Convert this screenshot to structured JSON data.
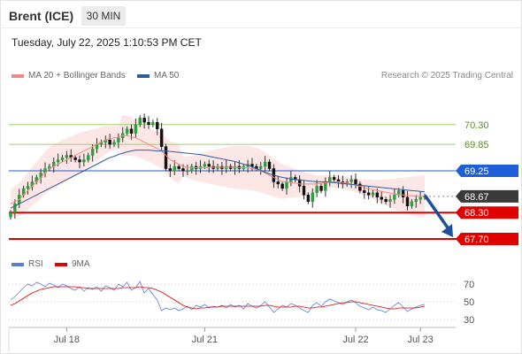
{
  "header": {
    "title": "Brent (ICE)",
    "timeframe": "30 MIN"
  },
  "datetime": "Tuesday, July 22, 2025 1:10:53 PM CET",
  "legend": {
    "main": [
      {
        "label": "MA 20 + Bollinger Bands",
        "color": "#f08a86"
      },
      {
        "label": "MA 50",
        "color": "#2e5d9e"
      }
    ],
    "rsi": [
      {
        "label": "RSI",
        "color": "#5b7fd6"
      },
      {
        "label": "9MA",
        "color": "#e00000"
      }
    ]
  },
  "credit": "Research © 2025 Trading Central",
  "chart_data": [
    {
      "type": "candlestick",
      "instrument": "Brent (ICE)",
      "timeframe": "30 MIN",
      "y_range": [
        67.5,
        71.2
      ],
      "levels": [
        {
          "value": 70.3,
          "label": "70.30",
          "kind": "resistance",
          "color": "#9fcf6b"
        },
        {
          "value": 69.85,
          "label": "69.85",
          "kind": "resistance",
          "color": "#9fcf6b"
        },
        {
          "value": 69.25,
          "label": "69.25",
          "kind": "pivot",
          "color": "#1d5fd6"
        },
        {
          "value": 68.67,
          "label": "68.67",
          "kind": "last_price",
          "color": "#3a3a3a"
        },
        {
          "value": 68.3,
          "label": "68.30",
          "kind": "support",
          "color": "#e00000"
        },
        {
          "value": 67.7,
          "label": "67.70",
          "kind": "support",
          "color": "#e00000"
        }
      ],
      "x_ticks": [
        "Jul 18",
        "Jul 21",
        "Jul 22",
        "Jul 23"
      ],
      "x_tick_index": [
        13,
        45,
        80,
        95
      ],
      "candles_count": 97,
      "closes": [
        68.3,
        68.5,
        68.7,
        68.85,
        68.9,
        69.0,
        69.1,
        69.2,
        69.3,
        69.35,
        69.45,
        69.5,
        69.55,
        69.6,
        69.55,
        69.5,
        69.45,
        69.5,
        69.6,
        69.75,
        69.85,
        69.9,
        69.95,
        69.85,
        69.9,
        70.0,
        70.1,
        70.2,
        70.1,
        70.3,
        70.45,
        70.35,
        70.3,
        70.35,
        70.2,
        69.8,
        69.3,
        69.25,
        69.35,
        69.3,
        69.25,
        69.25,
        69.35,
        69.3,
        69.35,
        69.4,
        69.35,
        69.3,
        69.35,
        69.3,
        69.35,
        69.3,
        69.35,
        69.3,
        69.35,
        69.4,
        69.35,
        69.3,
        69.35,
        69.45,
        69.3,
        69.0,
        68.95,
        68.85,
        69.0,
        69.1,
        69.05,
        68.9,
        68.7,
        68.55,
        68.75,
        68.9,
        68.8,
        69.0,
        69.1,
        69.05,
        69.0,
        68.95,
        69.0,
        69.05,
        68.95,
        68.8,
        68.75,
        68.7,
        68.75,
        68.65,
        68.6,
        68.55,
        68.6,
        68.7,
        68.8,
        68.65,
        68.45,
        68.55,
        68.6,
        68.65,
        68.67
      ],
      "ma20": [
        68.5,
        68.55,
        68.6,
        68.7,
        68.8,
        68.9,
        69.0,
        69.1,
        69.2,
        69.3,
        69.35,
        69.4,
        69.45,
        69.5,
        69.55,
        69.6,
        69.65,
        69.7,
        69.75,
        69.8,
        69.85,
        69.9,
        69.95,
        69.98,
        70.0,
        70.02,
        70.05,
        70.05,
        70.02,
        70.0,
        69.95,
        69.9,
        69.85,
        69.8,
        69.75,
        69.7,
        69.6,
        69.5,
        69.45,
        69.4,
        69.35,
        69.33,
        69.32,
        69.32,
        69.32,
        69.32,
        69.33,
        69.33,
        69.33,
        69.33,
        69.33,
        69.33,
        69.33,
        69.32,
        69.32,
        69.32,
        69.3,
        69.28,
        69.25,
        69.2,
        69.15,
        69.1,
        69.05,
        69.0,
        69.0,
        68.98,
        68.97,
        68.95,
        68.95,
        68.95,
        68.95,
        68.95,
        68.97,
        68.98,
        69.0,
        69.0,
        69.0,
        68.98,
        68.97,
        68.95,
        68.92,
        68.9,
        68.87,
        68.85,
        68.82,
        68.8,
        68.78,
        68.76,
        68.74,
        68.72,
        68.71,
        68.7,
        68.69,
        68.68,
        68.67,
        68.67,
        68.67
      ],
      "ma50": [
        68.4,
        68.45,
        68.5,
        68.55,
        68.6,
        68.65,
        68.7,
        68.75,
        68.8,
        68.85,
        68.9,
        68.95,
        69.0,
        69.05,
        69.1,
        69.15,
        69.2,
        69.25,
        69.3,
        69.35,
        69.4,
        69.45,
        69.5,
        69.55,
        69.58,
        69.62,
        69.65,
        69.68,
        69.7,
        69.72,
        69.72,
        69.72,
        69.72,
        69.71,
        69.7,
        69.7,
        69.7,
        69.69,
        69.68,
        69.67,
        69.66,
        69.65,
        69.64,
        69.63,
        69.62,
        69.6,
        69.58,
        69.56,
        69.54,
        69.52,
        69.5,
        69.48,
        69.46,
        69.43,
        69.4,
        69.37,
        69.34,
        69.3,
        69.26,
        69.22,
        69.18,
        69.15,
        69.12,
        69.1,
        69.08,
        69.06,
        69.05,
        69.04,
        69.03,
        69.02,
        69.01,
        69.0,
        69.0,
        69.0,
        68.99,
        68.98,
        68.97,
        68.96,
        68.95,
        68.94,
        68.93,
        68.92,
        68.91,
        68.9,
        68.89,
        68.88,
        68.87,
        68.86,
        68.85,
        68.84,
        68.83,
        68.82,
        68.81,
        68.8,
        68.79,
        68.78,
        68.77
      ],
      "forecast_arrow": {
        "from": 68.67,
        "to": 67.7,
        "direction": "down"
      }
    },
    {
      "type": "line",
      "indicator": "RSI",
      "y_range": [
        25,
        78
      ],
      "y_ticks": [
        70,
        50,
        30
      ],
      "series": [
        {
          "name": "RSI",
          "values": [
            52,
            56,
            61,
            66,
            70,
            68,
            72,
            70,
            67,
            71,
            69,
            66,
            70,
            68,
            65,
            63,
            67,
            62,
            66,
            64,
            67,
            62,
            68,
            66,
            63,
            70,
            67,
            72,
            63,
            66,
            73,
            60,
            65,
            58,
            52,
            40,
            43,
            41,
            43,
            40,
            42,
            45,
            41,
            46,
            44,
            47,
            43,
            45,
            44,
            46,
            43,
            47,
            44,
            46,
            42,
            48,
            45,
            43,
            46,
            50,
            44,
            38,
            42,
            46,
            44,
            48,
            46,
            43,
            40,
            38,
            46,
            49,
            45,
            50,
            53,
            51,
            49,
            47,
            50,
            52,
            49,
            45,
            43,
            41,
            44,
            41,
            40,
            38,
            42,
            46,
            49,
            44,
            39,
            42,
            44,
            46,
            47
          ]
        },
        {
          "name": "9MA",
          "values": [
            46,
            48,
            51,
            54,
            57,
            60,
            62,
            64,
            65,
            66,
            67,
            67,
            67,
            67,
            67,
            67,
            66,
            66,
            65,
            65,
            65,
            65,
            65,
            65,
            65,
            65,
            66,
            66,
            66,
            66,
            67,
            66,
            66,
            65,
            63,
            61,
            58,
            55,
            52,
            49,
            46,
            44,
            43,
            42,
            43,
            43,
            44,
            44,
            44,
            45,
            45,
            45,
            45,
            45,
            45,
            45,
            45,
            45,
            45,
            46,
            46,
            45,
            44,
            44,
            44,
            44,
            45,
            45,
            44,
            43,
            43,
            44,
            44,
            45,
            46,
            47,
            48,
            49,
            49,
            50,
            50,
            49,
            48,
            47,
            46,
            45,
            44,
            43,
            42,
            42,
            43,
            43,
            43,
            43,
            43,
            44,
            45
          ]
        }
      ]
    }
  ]
}
